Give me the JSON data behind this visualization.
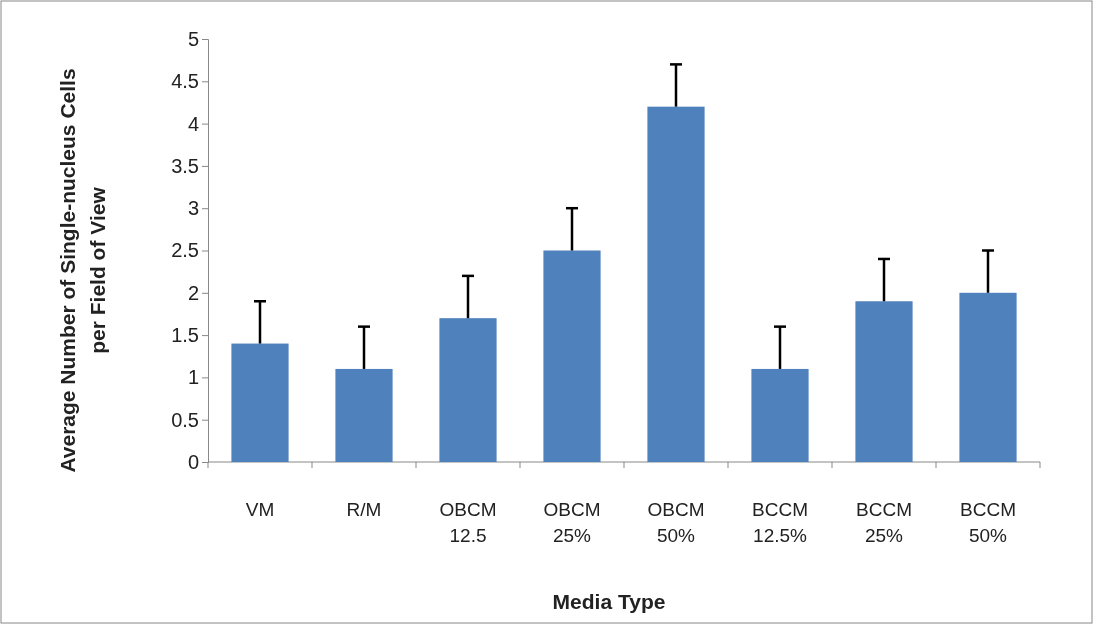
{
  "chart_data": {
    "type": "bar",
    "xlabel": "Media Type",
    "ylabel": "Average Number of Single-nucleus Cells per Field of View",
    "categories": [
      "VM",
      "R/M",
      "OBCM 12.5",
      "OBCM 25%",
      "OBCM 50%",
      "BCCM 12.5%",
      "BCCM 25%",
      "BCCM 50%"
    ],
    "values": [
      1.4,
      1.1,
      1.7,
      2.5,
      4.2,
      1.1,
      1.9,
      2.0
    ],
    "errors": [
      [
        1.4,
        1.9
      ],
      [
        1.1,
        1.6
      ],
      [
        1.7,
        2.2
      ],
      [
        2.5,
        3.0
      ],
      [
        4.2,
        4.7
      ],
      [
        1.1,
        1.6
      ],
      [
        1.9,
        2.4
      ],
      [
        2.0,
        2.5
      ]
    ],
    "color": "#4f81bd",
    "ylim": [
      0,
      5
    ],
    "yticks": [
      0,
      0.5,
      1,
      1.5,
      2,
      2.5,
      3,
      3.5,
      4,
      4.5,
      5
    ],
    "grid": false
  }
}
